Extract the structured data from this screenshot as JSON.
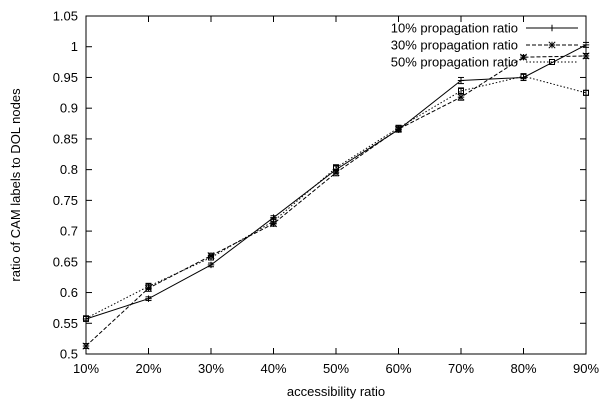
{
  "chart_data": {
    "type": "line",
    "xlabel": "accessibility ratio",
    "ylabel": "ratio of CAM labels to DOL nodes",
    "categories": [
      "10%",
      "20%",
      "30%",
      "40%",
      "50%",
      "60%",
      "70%",
      "80%",
      "90%"
    ],
    "ylim": [
      0.5,
      1.05
    ],
    "yticks": [
      "0.5",
      "0.55",
      "0.6",
      "0.65",
      "0.7",
      "0.75",
      "0.8",
      "0.85",
      "0.9",
      "0.95",
      "1",
      "1.05"
    ],
    "grid": false,
    "legend_position": "top-right",
    "series": [
      {
        "name": "10% propagation ratio",
        "line_style": "solid",
        "marker": "plus",
        "values": [
          0.557,
          0.59,
          0.645,
          0.722,
          0.8,
          0.865,
          0.945,
          0.95,
          1.003
        ],
        "errors": [
          0.004,
          0.003,
          0.003,
          0.003,
          0.006,
          0.004,
          0.005,
          0.005,
          0.004
        ]
      },
      {
        "name": "30% propagation ratio",
        "line_style": "dashed",
        "marker": "star",
        "values": [
          0.513,
          0.607,
          0.66,
          0.712,
          0.795,
          0.866,
          0.918,
          0.983,
          0.985
        ],
        "errors": [
          0.004,
          0.005,
          0.004,
          0.004,
          0.005,
          0.004,
          0.005,
          0.003,
          0.004
        ]
      },
      {
        "name": "50% propagation ratio",
        "line_style": "dotted",
        "marker": "box",
        "values": [
          0.558,
          0.61,
          0.657,
          0.716,
          0.803,
          0.868,
          0.928,
          0.952,
          0.925
        ],
        "errors": [
          0.004,
          0.005,
          0.004,
          0.004,
          0.005,
          0.004,
          0.005,
          0.004,
          0.004
        ]
      }
    ]
  }
}
